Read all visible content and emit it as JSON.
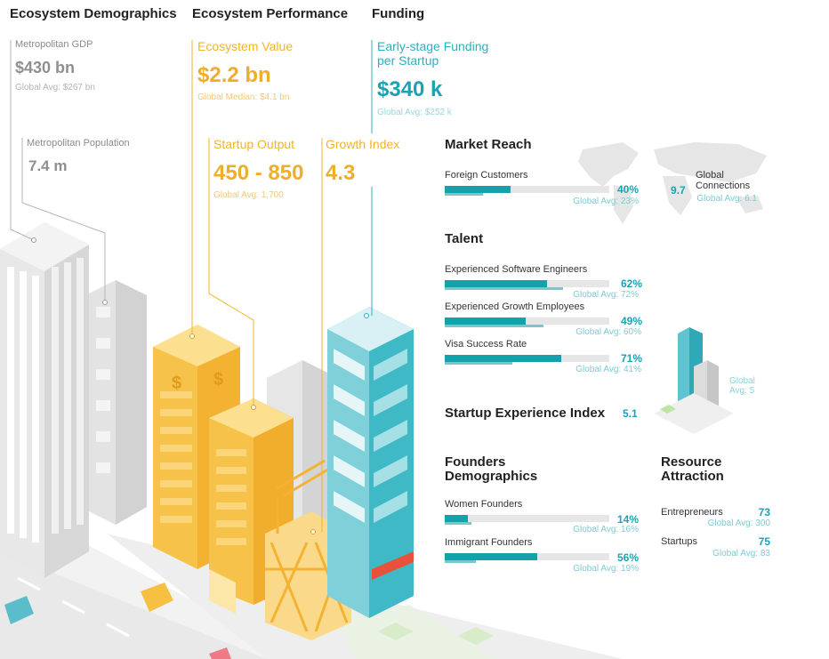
{
  "headers": {
    "demographics": "Ecosystem Demographics",
    "performance": "Ecosystem Performance",
    "funding": "Funding"
  },
  "demographics": {
    "gdp_label": "Metropolitan GDP",
    "gdp_value": "$430 bn",
    "gdp_avg": "Global Avg: $267 bn",
    "pop_label": "Metropolitan Population",
    "pop_value": "7.4 m"
  },
  "performance": {
    "value_label": "Ecosystem Value",
    "value_value": "$2.2 bn",
    "value_avg": "Global Median: $4.1 bn",
    "output_label": "Startup Output",
    "output_value": "450 - 850",
    "output_avg": "Global Avg: 1,700",
    "growth_label": "Growth Index",
    "growth_value": "4.3"
  },
  "funding": {
    "label_line1": "Early-stage Funding",
    "label_line2": "per Startup",
    "value": "$340 k",
    "avg": "Global Avg: $252 k"
  },
  "market_reach": {
    "title": "Market Reach",
    "foreign_label": "Foreign Customers",
    "foreign_pct": "40%",
    "foreign_value": 0.4,
    "foreign_avg": "Global Avg: 23%",
    "foreign_avg_value": 0.23,
    "connections_value": "9.7",
    "connections_label1": "Global",
    "connections_label2": "Connections",
    "connections_avg": "Global Avg: 6.1"
  },
  "talent": {
    "title": "Talent",
    "rows": [
      {
        "label": "Experienced Software Engineers",
        "pct": "62%",
        "value": 0.62,
        "avg": "Global Avg: 72%",
        "avg_value": 0.72
      },
      {
        "label": "Experienced Growth Employees",
        "pct": "49%",
        "value": 0.49,
        "avg": "Global Avg: 60%",
        "avg_value": 0.6
      },
      {
        "label": "Visa Success Rate",
        "pct": "71%",
        "value": 0.71,
        "avg": "Global Avg: 41%",
        "avg_value": 0.41
      }
    ]
  },
  "experience": {
    "title": "Startup Experience Index",
    "value": "5.1",
    "avg_line1": "Global",
    "avg_line2": "Avg: 5"
  },
  "founders": {
    "title_line1": "Founders",
    "title_line2": "Demographics",
    "rows": [
      {
        "label": "Women Founders",
        "pct": "14%",
        "value": 0.14,
        "avg": "Global Avg: 16%",
        "avg_value": 0.16
      },
      {
        "label": "Immigrant Founders",
        "pct": "56%",
        "value": 0.56,
        "avg": "Global Avg: 19%",
        "avg_value": 0.19
      }
    ]
  },
  "resource": {
    "title_line1": "Resource",
    "title_line2": "Attraction",
    "rows": [
      {
        "label": "Entrepreneurs",
        "value": "73",
        "avg": "Global Avg: 300"
      },
      {
        "label": "Startups",
        "value": "75",
        "avg": "Global Avg: 83"
      }
    ]
  },
  "colors": {
    "teal": "#13a2a9",
    "yellow": "#f6c042",
    "gray": "#dcdcdc"
  }
}
